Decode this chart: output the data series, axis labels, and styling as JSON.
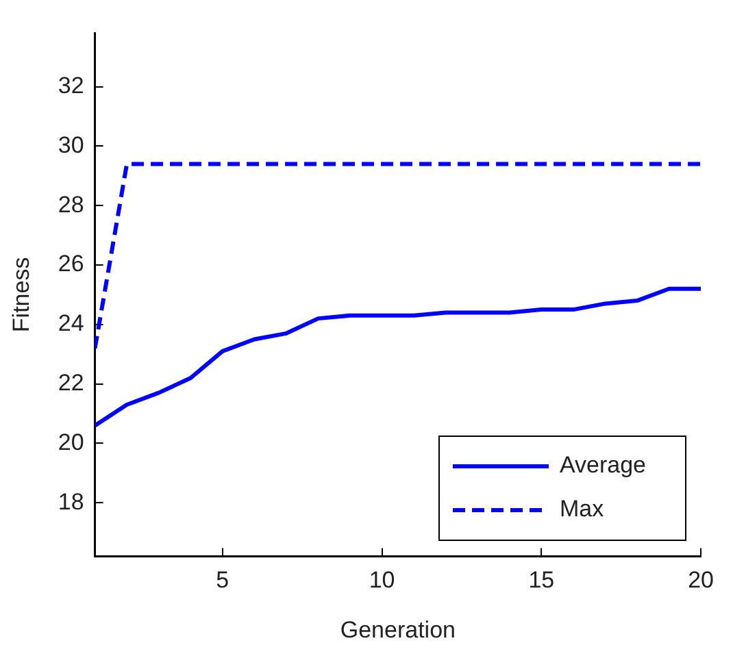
{
  "chart_data": {
    "type": "line",
    "xlabel": "Generation",
    "ylabel": "Fitness",
    "x": [
      1,
      2,
      3,
      4,
      5,
      6,
      7,
      8,
      9,
      10,
      11,
      12,
      13,
      14,
      15,
      16,
      17,
      18,
      19,
      20
    ],
    "series": [
      {
        "name": "Average",
        "color": "#0000ff",
        "line_style": "solid",
        "values": [
          20.6,
          21.3,
          21.7,
          22.2,
          23.1,
          23.5,
          23.7,
          24.2,
          24.3,
          24.3,
          24.3,
          24.4,
          24.4,
          24.4,
          24.5,
          24.5,
          24.7,
          24.8,
          25.2,
          25.2
        ]
      },
      {
        "name": "Max",
        "color": "#0000ff",
        "line_style": "dashed",
        "values": [
          23.2,
          29.4,
          29.4,
          29.4,
          29.4,
          29.4,
          29.4,
          29.4,
          29.4,
          29.4,
          29.4,
          29.4,
          29.4,
          29.4,
          29.4,
          29.4,
          29.4,
          29.4,
          29.4,
          29.4
        ]
      }
    ],
    "xlim": [
      1,
      20
    ],
    "xticks": [
      5,
      10,
      15,
      20
    ],
    "ylim": [
      16.2,
      33.8
    ],
    "yticks": [
      18,
      20,
      22,
      24,
      26,
      28,
      30,
      32
    ],
    "grid": false,
    "legend": "bottom right",
    "marker": "none"
  }
}
